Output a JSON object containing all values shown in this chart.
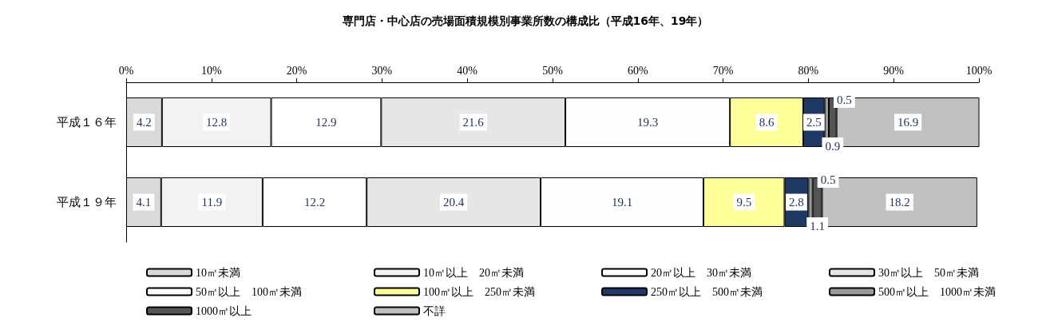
{
  "chart_data": {
    "type": "bar",
    "orientation": "horizontal",
    "stacked": true,
    "title": "専門店・中心店の売場面積規模別事業所数の構成比（平成16年、19年）",
    "categories": [
      "平成１６年",
      "平成１９年"
    ],
    "series": [
      {
        "name": "10㎡未満",
        "color": "#d9d9d9",
        "values": [
          4.2,
          4.1
        ]
      },
      {
        "name": "10㎡以上　20㎡未満",
        "color": "#f2f2f2",
        "values": [
          12.8,
          11.9
        ]
      },
      {
        "name": "20㎡以上　30㎡未満",
        "color": "#ffffff",
        "values": [
          12.9,
          12.2
        ]
      },
      {
        "name": "30㎡以上　50㎡未満",
        "color": "#e6e6e6",
        "values": [
          21.6,
          20.4
        ]
      },
      {
        "name": "50㎡以上　100㎡未満",
        "color": "#fdfdfd",
        "values": [
          19.3,
          19.1
        ]
      },
      {
        "name": "100㎡以上　250㎡未満",
        "color": "#ffff99",
        "values": [
          8.6,
          9.5
        ]
      },
      {
        "name": "250㎡以上　500㎡未満",
        "color": "#1f3864",
        "values": [
          2.5,
          2.8
        ]
      },
      {
        "name": "500㎡以上　1000㎡未満",
        "color": "#999999",
        "values": [
          0.5,
          0.5
        ]
      },
      {
        "name": "1000㎡以上",
        "color": "#555555",
        "values": [
          0.9,
          1.1
        ]
      },
      {
        "name": "不詳",
        "color": "#c0c0c0",
        "values": [
          16.9,
          18.2
        ]
      }
    ],
    "xlim": [
      0,
      100
    ],
    "xticks": [
      {
        "value": 0,
        "label": "0%"
      },
      {
        "value": 10,
        "label": "10%"
      },
      {
        "value": 20,
        "label": "20%"
      },
      {
        "value": 30,
        "label": "30%"
      },
      {
        "value": 40,
        "label": "40%"
      },
      {
        "value": 50,
        "label": "50%"
      },
      {
        "value": 60,
        "label": "60%"
      },
      {
        "value": 70,
        "label": "70%"
      },
      {
        "value": 80,
        "label": "80%"
      },
      {
        "value": 90,
        "label": "90%"
      },
      {
        "value": 100,
        "label": "100%"
      }
    ],
    "data_labels": true,
    "legend": "bottom",
    "grid": false
  }
}
